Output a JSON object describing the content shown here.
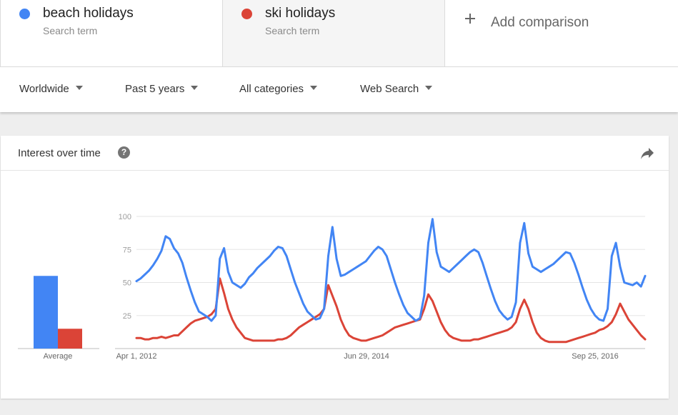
{
  "terms": [
    {
      "name": "beach holidays",
      "sub": "Search term",
      "color": "#4285f4"
    },
    {
      "name": "ski holidays",
      "sub": "Search term",
      "color": "#db4437"
    }
  ],
  "add_comparison": "Add comparison",
  "filters": {
    "region": "Worldwide",
    "time": "Past 5 years",
    "category": "All categories",
    "search_type": "Web Search"
  },
  "card": {
    "title": "Interest over time",
    "help_icon": "help-icon",
    "share_icon": "share-icon"
  },
  "chart_data": [
    {
      "type": "bar",
      "categories": [
        "Average"
      ],
      "series": [
        {
          "name": "beach holidays",
          "values": [
            55
          ],
          "color": "#4285f4"
        },
        {
          "name": "ski holidays",
          "values": [
            15
          ],
          "color": "#db4437"
        }
      ],
      "ylim": [
        0,
        100
      ]
    },
    {
      "type": "line",
      "x_ticks": [
        "Apr 1, 2012",
        "Jun 29, 2014",
        "Sep 25, 2016"
      ],
      "y_ticks": [
        100,
        75,
        50,
        25
      ],
      "ylim": [
        0,
        100
      ],
      "grid": true,
      "series": [
        {
          "name": "beach holidays",
          "color": "#4285f4",
          "values": [
            51,
            53,
            56,
            59,
            63,
            68,
            74,
            85,
            83,
            76,
            72,
            65,
            54,
            44,
            35,
            28,
            26,
            24,
            21,
            25,
            68,
            76,
            58,
            50,
            48,
            46,
            49,
            54,
            57,
            61,
            64,
            67,
            70,
            74,
            77,
            76,
            70,
            60,
            50,
            42,
            34,
            28,
            25,
            22,
            23,
            30,
            70,
            92,
            68,
            55,
            56,
            58,
            60,
            62,
            64,
            66,
            70,
            74,
            77,
            75,
            70,
            60,
            50,
            41,
            33,
            27,
            24,
            21,
            23,
            40,
            80,
            98,
            73,
            62,
            60,
            58,
            61,
            64,
            67,
            70,
            73,
            75,
            73,
            65,
            55,
            45,
            36,
            29,
            25,
            22,
            24,
            35,
            80,
            95,
            72,
            62,
            60,
            58,
            60,
            62,
            64,
            67,
            70,
            73,
            72,
            65,
            56,
            46,
            37,
            30,
            25,
            22,
            21,
            30,
            70,
            80,
            62,
            50,
            49,
            48,
            50,
            47,
            55
          ]
        },
        {
          "name": "ski holidays",
          "color": "#db4437",
          "values": [
            8,
            8,
            7,
            7,
            8,
            8,
            9,
            8,
            9,
            10,
            10,
            13,
            16,
            19,
            21,
            22,
            23,
            24,
            26,
            30,
            53,
            42,
            30,
            22,
            16,
            12,
            8,
            7,
            6,
            6,
            6,
            6,
            6,
            6,
            7,
            7,
            8,
            10,
            13,
            16,
            18,
            20,
            22,
            24,
            26,
            30,
            48,
            40,
            32,
            22,
            15,
            10,
            8,
            7,
            6,
            6,
            7,
            8,
            9,
            10,
            12,
            14,
            16,
            17,
            18,
            19,
            20,
            21,
            22,
            30,
            41,
            36,
            28,
            20,
            14,
            10,
            8,
            7,
            6,
            6,
            6,
            7,
            7,
            8,
            9,
            10,
            11,
            12,
            13,
            14,
            16,
            20,
            30,
            37,
            30,
            20,
            12,
            8,
            6,
            5,
            5,
            5,
            5,
            5,
            6,
            7,
            8,
            9,
            10,
            11,
            12,
            14,
            15,
            17,
            20,
            26,
            34,
            28,
            22,
            18,
            14,
            10,
            7
          ]
        }
      ]
    }
  ]
}
